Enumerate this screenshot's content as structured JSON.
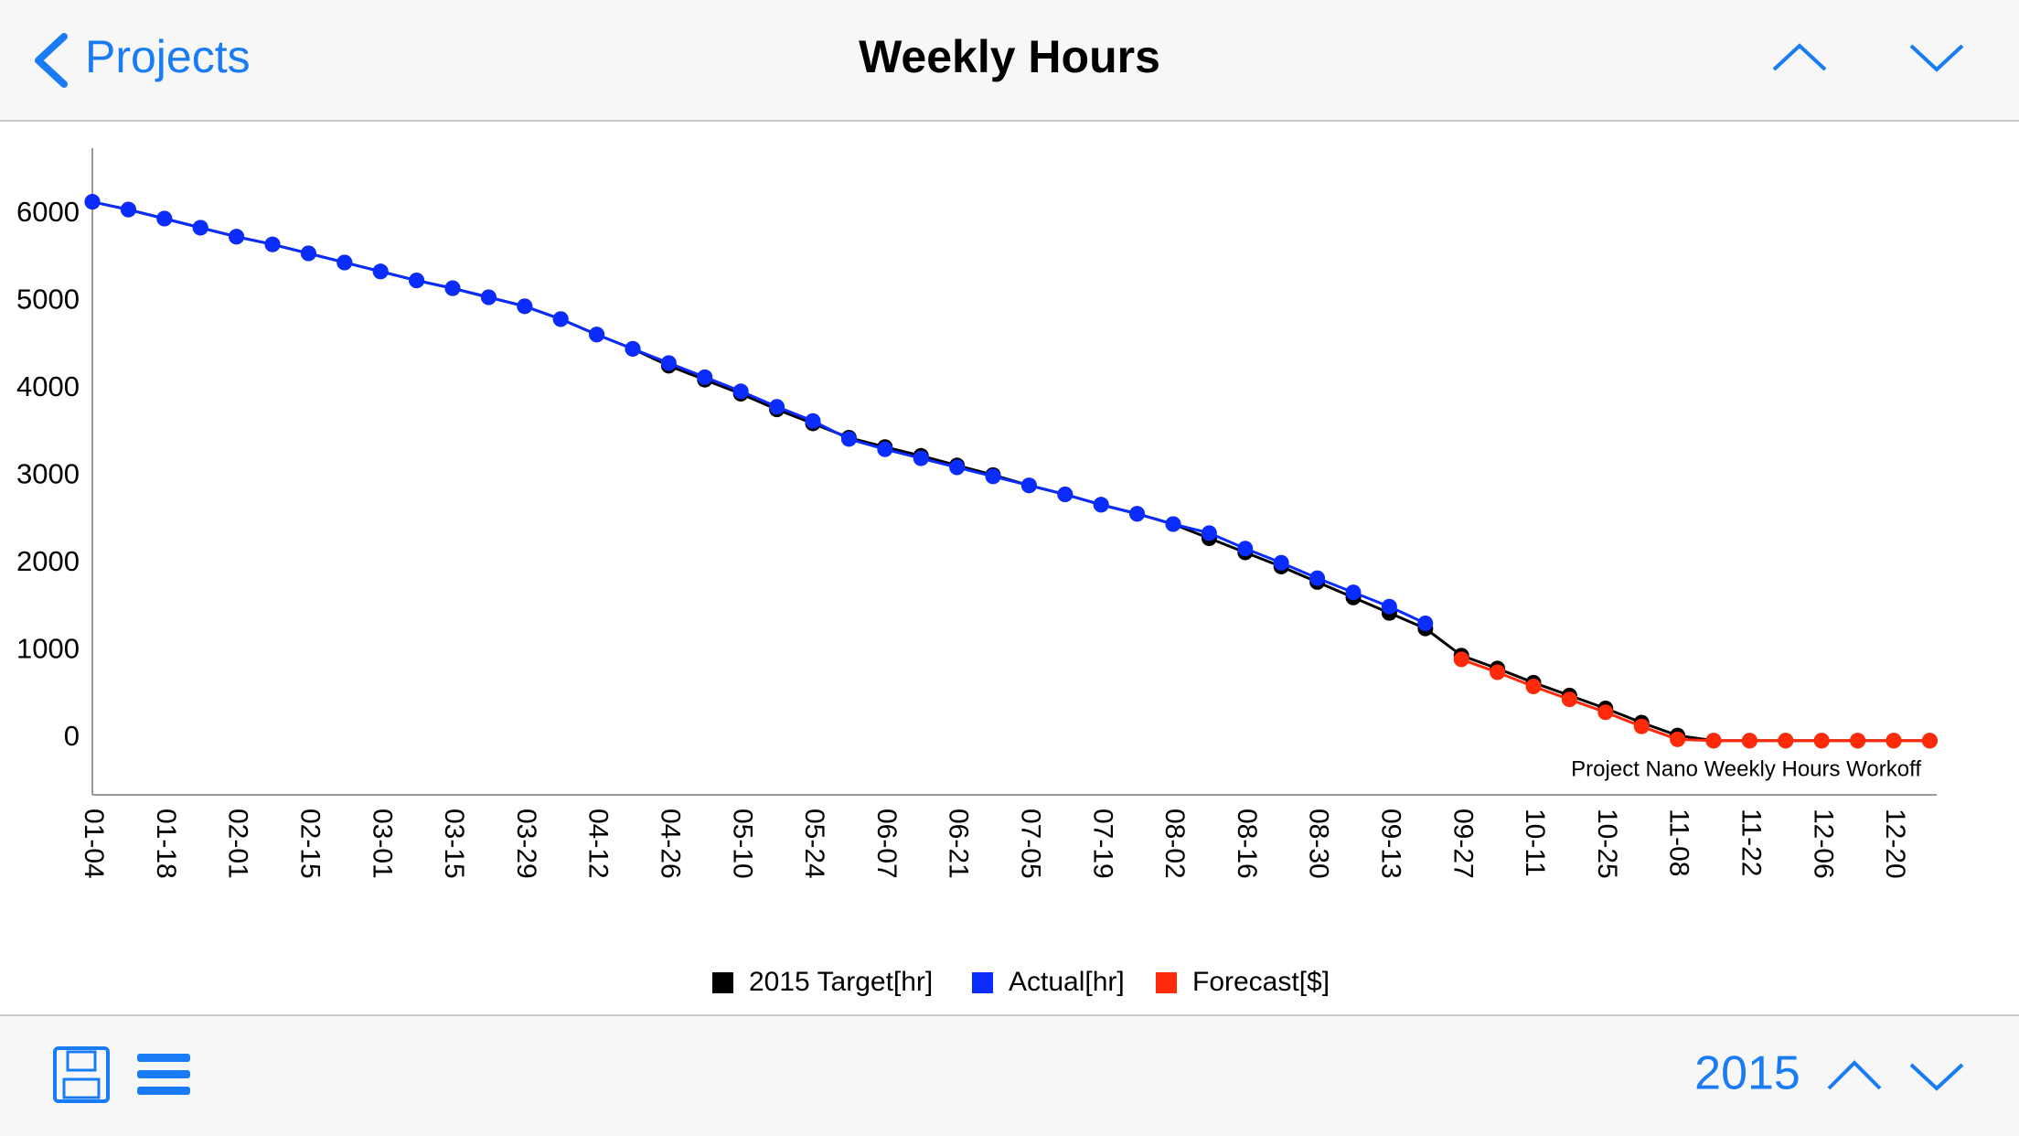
{
  "nav": {
    "back": "Projects",
    "title": "Weekly Hours"
  },
  "chart_data": {
    "type": "line",
    "annotation": "Project Nano Weekly Hours Workoff",
    "categories": [
      "01-04",
      null,
      "01-18",
      null,
      "02-01",
      null,
      "02-15",
      null,
      "03-01",
      null,
      "03-15",
      null,
      "03-29",
      null,
      "04-12",
      null,
      "04-26",
      null,
      "05-10",
      null,
      "05-24",
      null,
      "06-07",
      null,
      "06-21",
      null,
      "07-05",
      null,
      "07-19",
      null,
      "08-02",
      null,
      "08-16",
      null,
      "08-30",
      null,
      "09-13",
      null,
      "09-27",
      null,
      "10-11",
      null,
      "10-25",
      null,
      "11-08",
      null,
      "11-22",
      null,
      "12-06",
      null,
      "12-20",
      null
    ],
    "series": [
      {
        "name": "2015 Target[hr]",
        "color": "#000000",
        "values": [
          6136,
          6047,
          5944,
          5840,
          5737,
          5649,
          5546,
          5442,
          5339,
          5236,
          5147,
          5044,
          4941,
          4794,
          4617,
          4454,
          4260,
          4100,
          3940,
          3760,
          3600,
          3437,
          3330,
          3230,
          3120,
          3010,
          2891,
          2788,
          2670,
          2566,
          2448,
          2286,
          2124,
          1962,
          1785,
          1608,
          1431,
          1254,
          944,
          796,
          634,
          487,
          339,
          177,
          29,
          -30,
          -30,
          -30,
          -30,
          -30,
          -30,
          -30
        ]
      },
      {
        "name": "Actual[hr]",
        "color": "#0a2cff",
        "values": [
          6136,
          6047,
          5944,
          5840,
          5737,
          5649,
          5546,
          5442,
          5339,
          5236,
          5147,
          5044,
          4941,
          4794,
          4617,
          4454,
          4292,
          4130,
          3968,
          3791,
          3628,
          3422,
          3304,
          3201,
          3097,
          2994,
          2891,
          2788,
          2670,
          2566,
          2448,
          2345,
          2168,
          2006,
          1829,
          1667,
          1504,
          1313,
          null,
          null,
          null,
          null,
          null,
          null,
          null,
          null,
          null,
          null,
          null,
          null,
          null,
          null
        ]
      },
      {
        "name": "Forecast[$]",
        "color": "#ff2a0a",
        "values": [
          null,
          null,
          null,
          null,
          null,
          null,
          null,
          null,
          null,
          null,
          null,
          null,
          null,
          null,
          null,
          null,
          null,
          null,
          null,
          null,
          null,
          null,
          null,
          null,
          null,
          null,
          null,
          null,
          null,
          null,
          null,
          null,
          null,
          null,
          null,
          null,
          null,
          null,
          900,
          752,
          590,
          442,
          295,
          133,
          -15,
          -30,
          -30,
          -30,
          -30,
          -30,
          -30,
          -30
        ]
      }
    ],
    "ylim": [
      -650,
      6750
    ],
    "yticks": [
      0,
      1000,
      2000,
      3000,
      4000,
      5000,
      6000
    ],
    "grid": false,
    "legend": "bottom"
  },
  "toolbar": {
    "year": "2015"
  }
}
